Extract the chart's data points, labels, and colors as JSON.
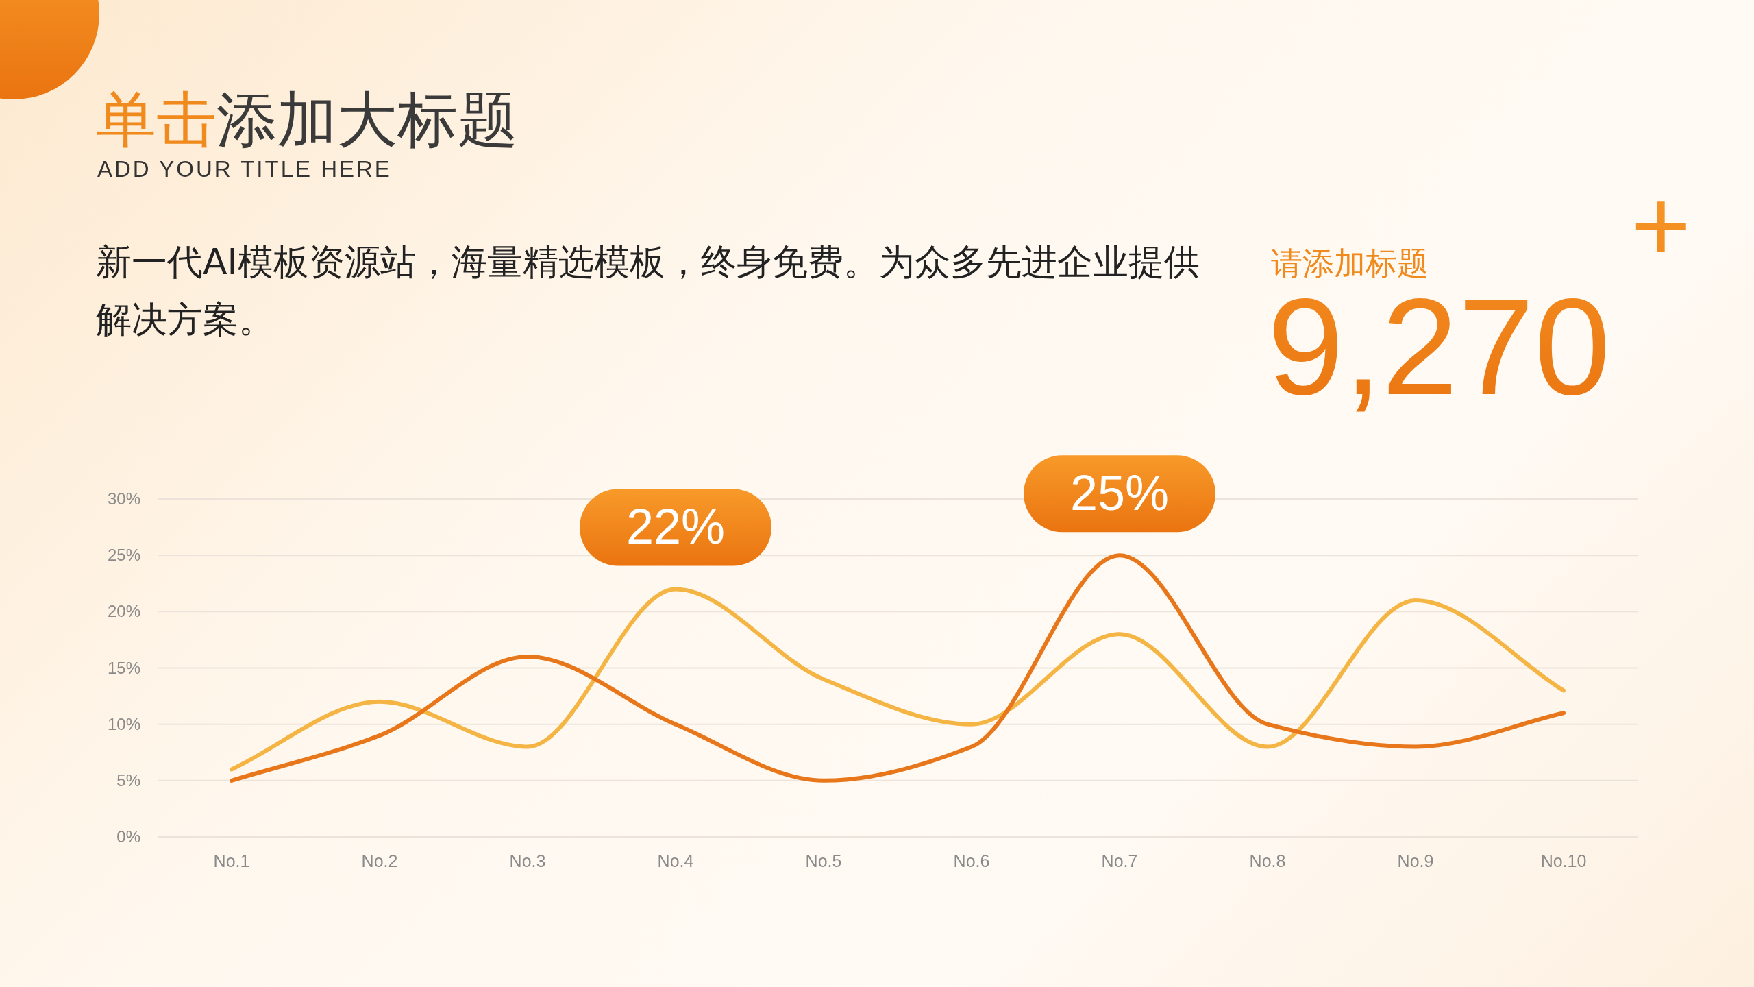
{
  "chart_data": {
    "type": "line",
    "title": "单击添加大标题",
    "subtitle": "ADD YOUR TITLE HERE",
    "annotations": [
      "新一代AI模板资源站，海量精选模板，终身免费。为众多先进企业提供解决方案。",
      "请添加标题",
      "9,270$^{+}$",
      {
        "text": "22%",
        "x": "No.4",
        "y": 22
      },
      {
        "text": "25%",
        "x": "No.7",
        "y": 25
      }
    ],
    "categories": [
      "No.1",
      "No.2",
      "No.3",
      "No.4",
      "No.5",
      "No.6",
      "No.7",
      "No.8",
      "No.9",
      "No.10"
    ],
    "series": [
      {
        "color": "#f5b544",
        "values": [
          6,
          12,
          8,
          22,
          14,
          10,
          18,
          8,
          21,
          13
        ]
      },
      {
        "color": "#e8761a",
        "values": [
          5,
          9,
          16,
          10,
          5,
          8,
          25,
          10,
          8,
          11
        ]
      }
    ],
    "ylim": [
      0,
      30
    ],
    "yticks": [
      {
        "value": 0,
        "label": "0%"
      },
      {
        "value": 5,
        "label": "5%"
      },
      {
        "value": 10,
        "label": "10%"
      },
      {
        "value": 15,
        "label": "15%"
      },
      {
        "value": 20,
        "label": "20%"
      },
      {
        "value": 25,
        "label": "25%"
      },
      {
        "value": 30,
        "label": "30%"
      }
    ],
    "grid": "y",
    "marker": "none",
    "line_style": "solid"
  }
}
